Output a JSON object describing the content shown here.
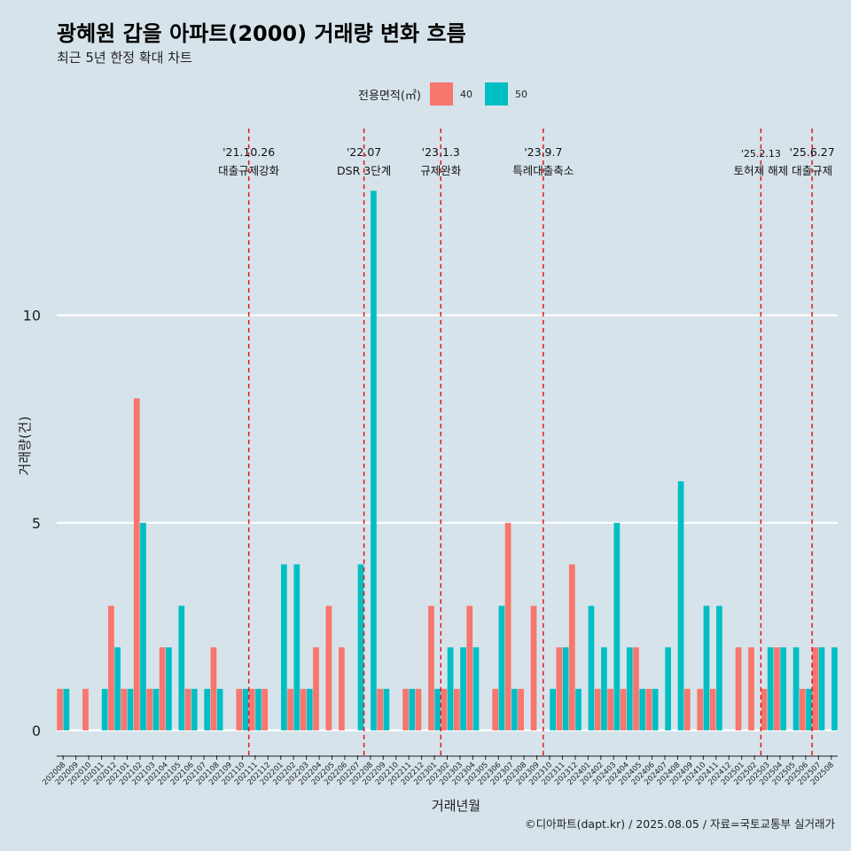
{
  "title": "광혜원 갑을 아파트(2000) 거래량 변화 흐름",
  "subtitle": "최근 5년 한정 확대 차트",
  "legend": {
    "title": "전용면적(㎡)",
    "items": [
      {
        "label": "40",
        "color": "#f8766d"
      },
      {
        "label": "50",
        "color": "#00bfc4"
      }
    ]
  },
  "caption": "©디아파트(dapt.kr) / 2025.08.05 / 자료=국토교통부 실거래가",
  "chart_data": {
    "type": "bar",
    "xlabel": "거래년월",
    "ylabel": "거래량(건)",
    "yticks": [
      "0",
      "5",
      "10"
    ],
    "ylim": [
      -0.6,
      14.5
    ],
    "grid": true,
    "legend_position": "top",
    "categories": [
      "202008",
      "202009",
      "202010",
      "202011",
      "202012",
      "202101",
      "202102",
      "202103",
      "202104",
      "202105",
      "202106",
      "202107",
      "202108",
      "202109",
      "202110",
      "202111",
      "202112",
      "202201",
      "202202",
      "202203",
      "202204",
      "202205",
      "202206",
      "202207",
      "202208",
      "202209",
      "202210",
      "202211",
      "202212",
      "202301",
      "202302",
      "202303",
      "202304",
      "202305",
      "202306",
      "202307",
      "202308",
      "202309",
      "202310",
      "202311",
      "202312",
      "202401",
      "202402",
      "202403",
      "202404",
      "202405",
      "202406",
      "202407",
      "202408",
      "202409",
      "202410",
      "202411",
      "202412",
      "202501",
      "202502",
      "202503",
      "202504",
      "202505",
      "202506",
      "202507",
      "202508"
    ],
    "series": [
      {
        "name": "40",
        "color": "#f8766d",
        "values": [
          1,
          0,
          1,
          0,
          3,
          1,
          8,
          1,
          2,
          0,
          1,
          0,
          2,
          0,
          1,
          1,
          1,
          0,
          1,
          1,
          2,
          3,
          2,
          0,
          0,
          1,
          0,
          1,
          1,
          3,
          1,
          1,
          3,
          0,
          1,
          5,
          1,
          3,
          0,
          2,
          4,
          0,
          1,
          1,
          1,
          2,
          1,
          0,
          0,
          1,
          1,
          1,
          0,
          2,
          2,
          1,
          2,
          0,
          1,
          2,
          0
        ]
      },
      {
        "name": "50",
        "color": "#00bfc4",
        "values": [
          1,
          0,
          0,
          1,
          2,
          1,
          5,
          1,
          2,
          3,
          1,
          1,
          1,
          0,
          1,
          1,
          0,
          4,
          4,
          1,
          0,
          0,
          0,
          4,
          13,
          1,
          0,
          1,
          0,
          1,
          2,
          2,
          2,
          0,
          3,
          1,
          0,
          0,
          1,
          2,
          1,
          3,
          2,
          5,
          2,
          1,
          1,
          2,
          6,
          0,
          3,
          3,
          0,
          0,
          0,
          2,
          2,
          2,
          1,
          2,
          2
        ]
      }
    ],
    "events": [
      {
        "after": "202110",
        "date": "'21.10.26",
        "label": "대출규제강화"
      },
      {
        "after": "202207",
        "date": "'22.07",
        "label": "DSR 3단계"
      },
      {
        "after": "202301",
        "date": "'23.1.3",
        "label": "규제완화"
      },
      {
        "after": "202309",
        "date": "'23.9.7",
        "label": "특례대출축소"
      },
      {
        "after": "202502",
        "date": "'25.2.13",
        "label": "토허제 해제"
      },
      {
        "after": "202506",
        "date": "'25.6.27",
        "label": "대출규제"
      }
    ]
  }
}
